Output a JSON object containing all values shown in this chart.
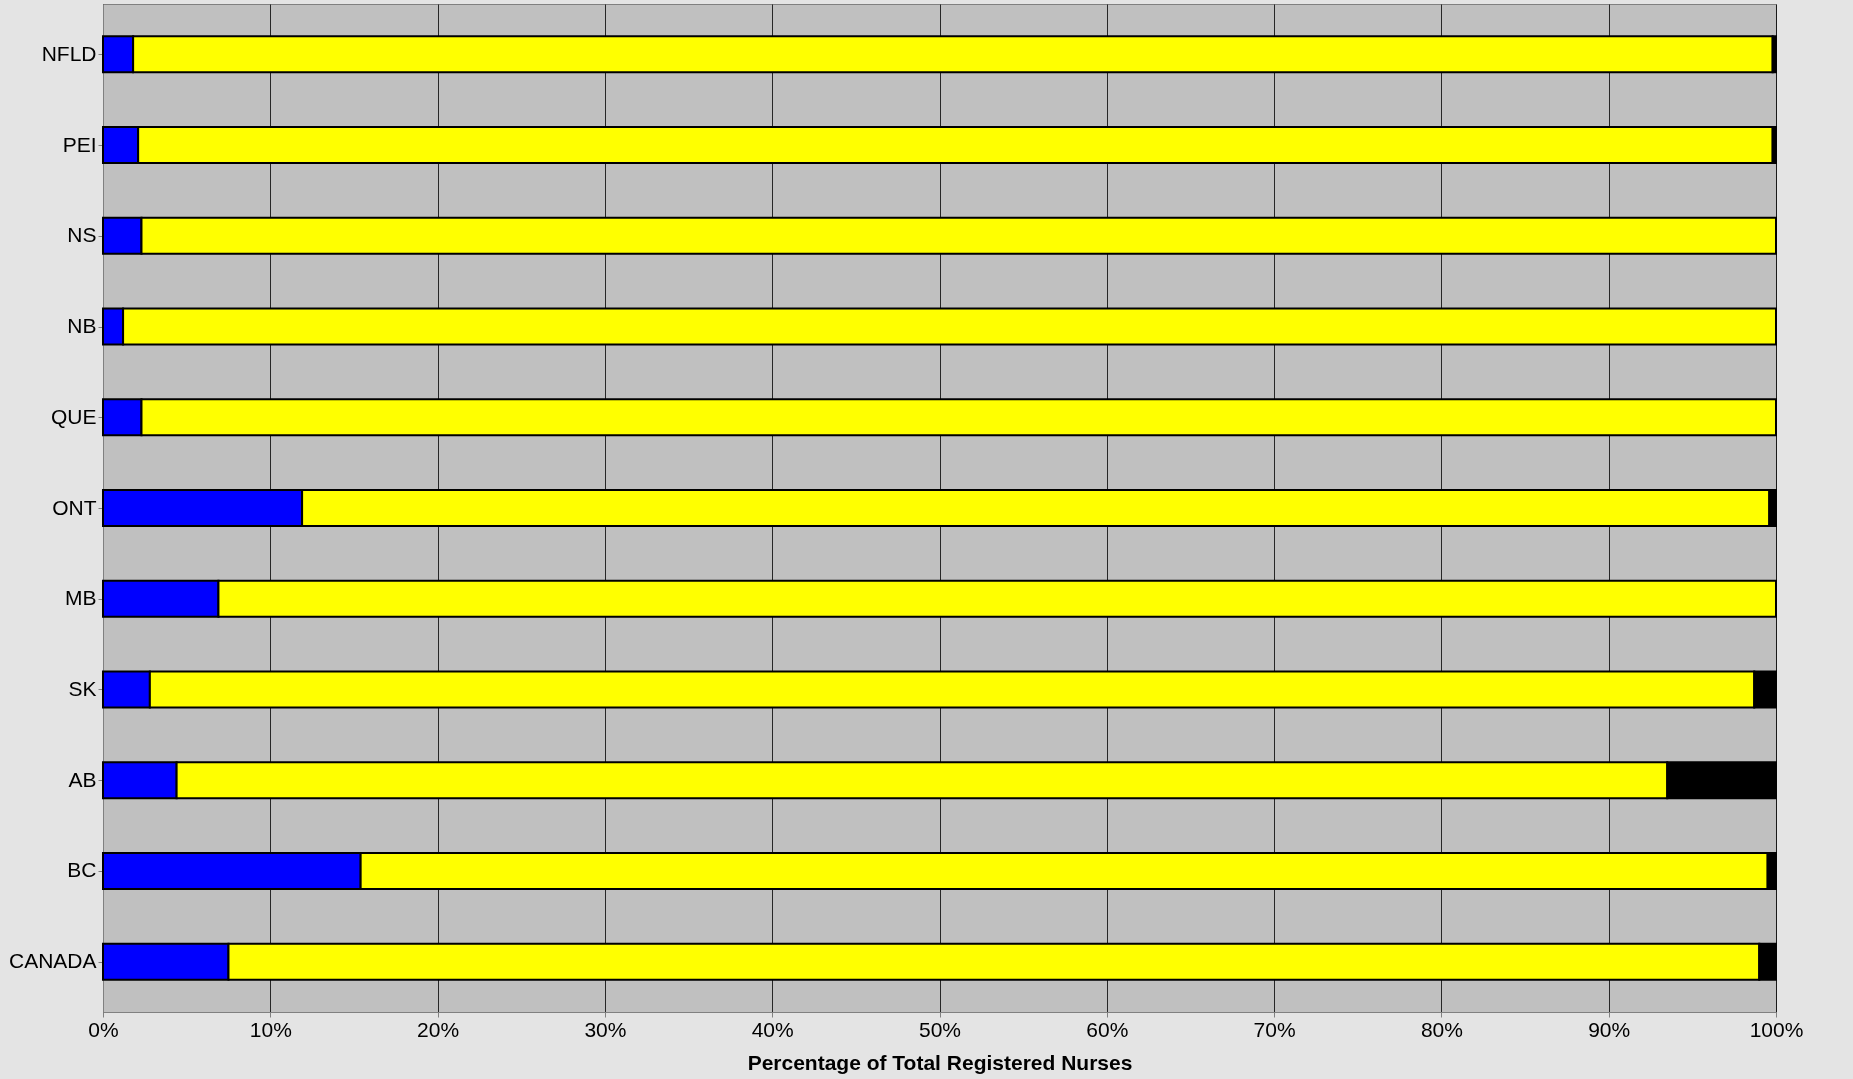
{
  "chart_data": {
    "type": "bar",
    "orientation": "horizontal",
    "stacked": true,
    "xlabel": "Percentage of Total Registered Nurses",
    "categories": [
      "NFLD",
      "PEI",
      "NS",
      "NB",
      "QUE",
      "ONT",
      "MB",
      "SK",
      "AB",
      "BC",
      "CANADA"
    ],
    "series": [
      {
        "color": "#0000ff",
        "values": [
          1.8,
          2.1,
          2.3,
          1.2,
          2.3,
          11.9,
          6.9,
          2.8,
          4.4,
          15.4,
          7.5
        ]
      },
      {
        "color": "#ffff00",
        "values": [
          98.0,
          97.7,
          97.7,
          98.8,
          97.7,
          87.7,
          93.1,
          95.9,
          89.1,
          84.1,
          91.5
        ]
      },
      {
        "color": "#000000",
        "values": [
          0.2,
          0.2,
          0,
          0,
          0,
          0.4,
          0,
          1.3,
          6.5,
          0.5,
          1.0
        ]
      }
    ],
    "xlim": [
      0,
      100
    ],
    "xticks": [
      {
        "value": 0,
        "label": "0%"
      },
      {
        "value": 10,
        "label": "10%"
      },
      {
        "value": 20,
        "label": "20%"
      },
      {
        "value": 30,
        "label": "30%"
      },
      {
        "value": 40,
        "label": "40%"
      },
      {
        "value": 50,
        "label": "50%"
      },
      {
        "value": 60,
        "label": "60%"
      },
      {
        "value": 70,
        "label": "70%"
      },
      {
        "value": 80,
        "label": "80%"
      },
      {
        "value": 90,
        "label": "90%"
      },
      {
        "value": 100,
        "label": "100%"
      }
    ],
    "grid": "x"
  }
}
